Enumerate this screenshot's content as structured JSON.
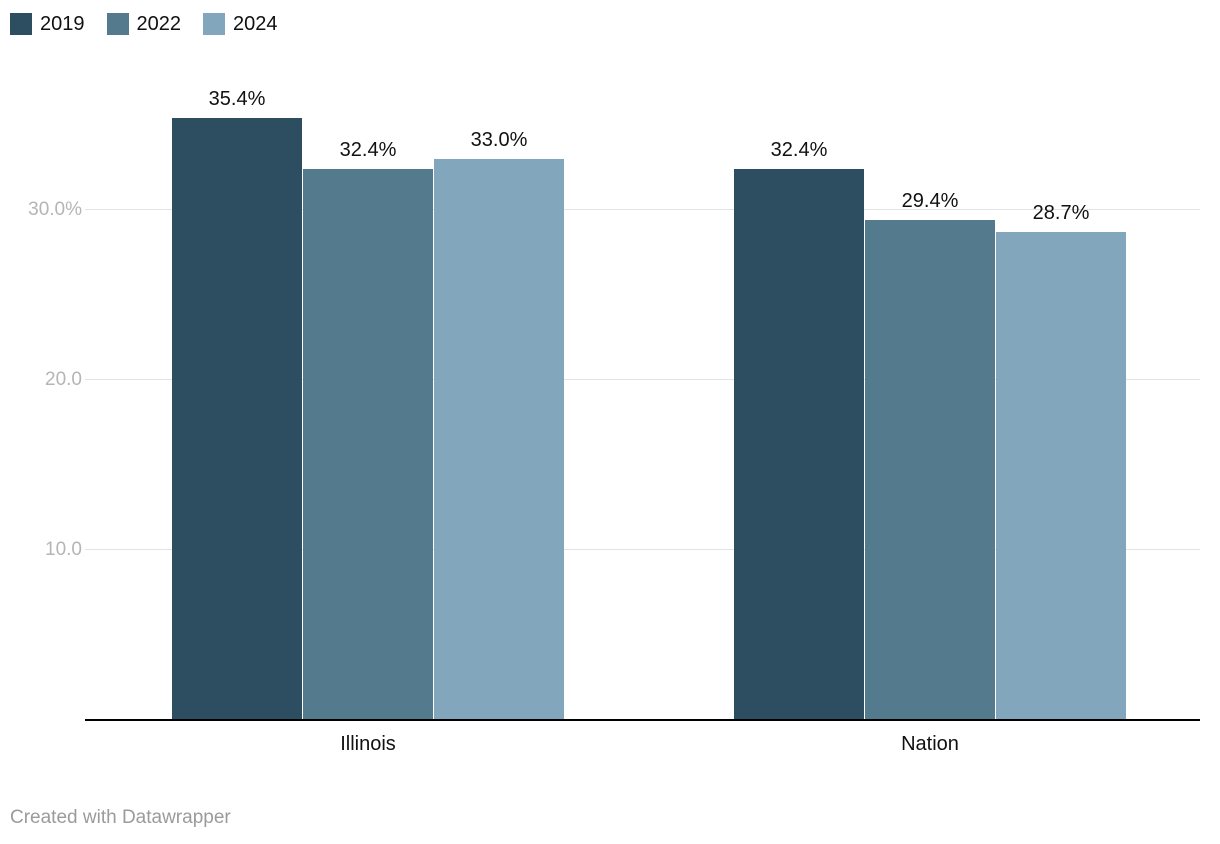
{
  "legend": {
    "items": [
      {
        "label": "2019",
        "color": "#2d4e61"
      },
      {
        "label": "2022",
        "color": "#547a8e"
      },
      {
        "label": "2024",
        "color": "#82a6bc"
      }
    ]
  },
  "footer": {
    "text": "Created with Datawrapper"
  },
  "chart_data": {
    "type": "bar",
    "title": "",
    "xlabel": "",
    "ylabel": "",
    "categories": [
      "Illinois",
      "Nation"
    ],
    "series": [
      {
        "name": "2019",
        "color": "#2d4e61",
        "values": [
          35.4,
          32.4
        ],
        "labels": [
          "35.4%",
          "32.4%"
        ]
      },
      {
        "name": "2022",
        "color": "#547a8e",
        "values": [
          32.4,
          29.4
        ],
        "labels": [
          "32.4%",
          "29.4%"
        ]
      },
      {
        "name": "2024",
        "color": "#82a6bc",
        "values": [
          33.0,
          28.7
        ],
        "labels": [
          "33.0%",
          "28.7%"
        ]
      }
    ],
    "y_ticks": [
      {
        "value": 30,
        "label": "30.0%"
      },
      {
        "value": 20,
        "label": "20.0"
      },
      {
        "value": 10,
        "label": "10.0"
      }
    ],
    "ylim": [
      0,
      42
    ],
    "grid": true,
    "legend_position": "top-left"
  }
}
